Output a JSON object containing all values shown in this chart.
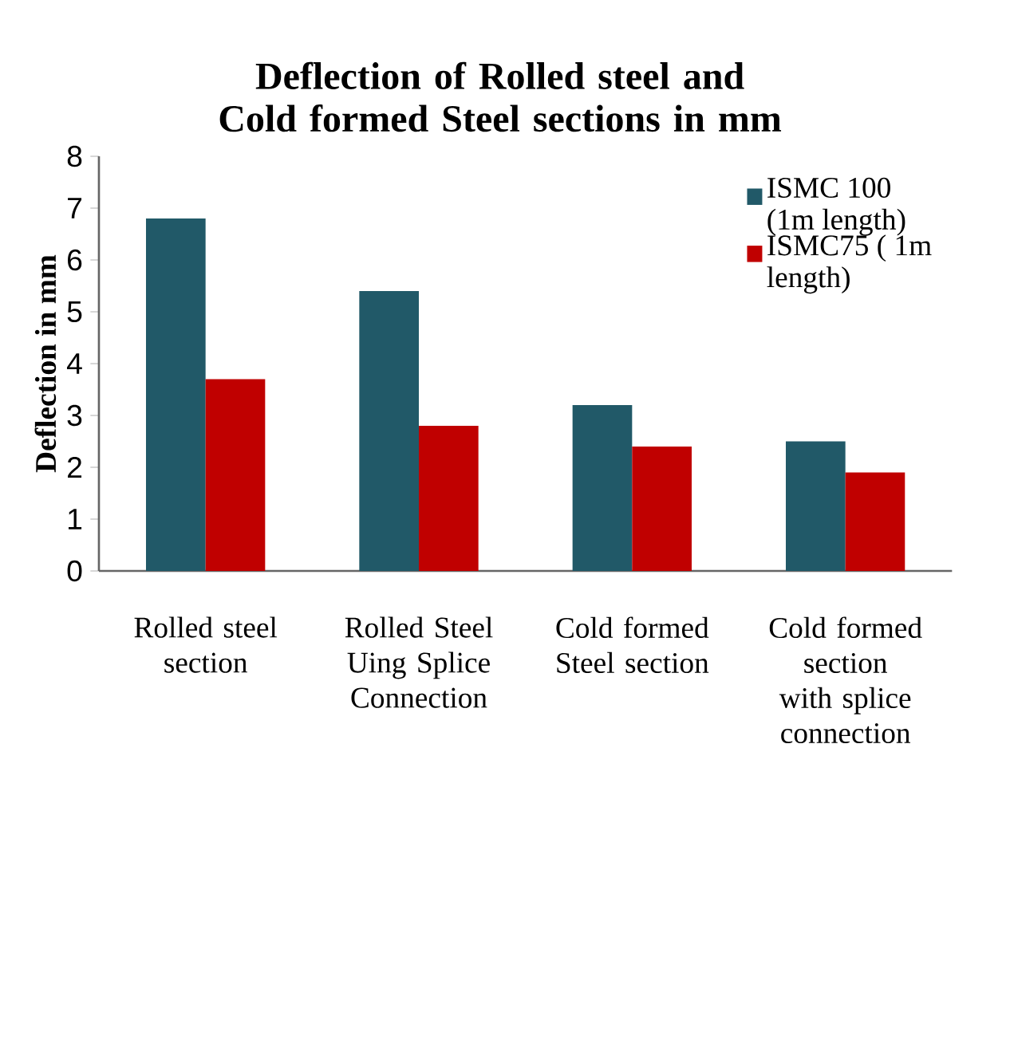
{
  "chart_data": {
    "type": "bar",
    "title": "Deflection of Rolled steel and Cold formed Steel sections in mm",
    "ylabel": "Deflection in mm",
    "categories": [
      "Rolled steel section",
      "Rolled Steel Uing Splice Connection",
      "Cold formed Steel section",
      "Cold formed section with splice connection"
    ],
    "series": [
      {
        "name": "ISMC 100 (1m length)",
        "color": "#215968",
        "values": [
          6.8,
          5.4,
          3.2,
          2.5
        ]
      },
      {
        "name": "ISMC75 ( 1m length)",
        "color": "#c00000",
        "values": [
          3.7,
          2.8,
          2.4,
          1.9
        ]
      }
    ],
    "ylim": [
      0,
      8
    ],
    "yticks": [
      0,
      1,
      2,
      3,
      4,
      5,
      6,
      7,
      8
    ],
    "legend": "top right"
  }
}
